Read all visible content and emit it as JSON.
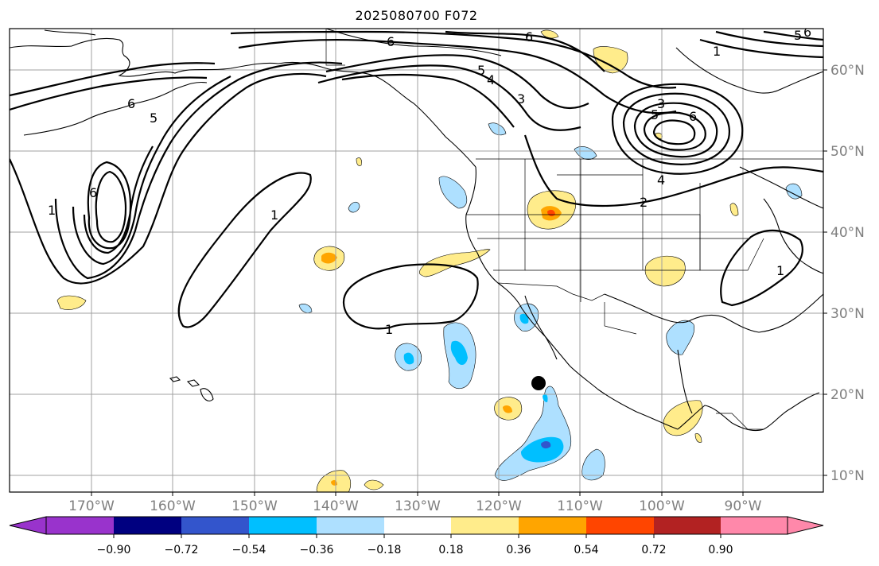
{
  "title": "2025080700 F072",
  "lon_labels": [
    "170°W",
    "160°W",
    "150°W",
    "140°W",
    "130°W",
    "120°W",
    "110°W",
    "100°W",
    "90°W"
  ],
  "lat_labels": [
    "60°N",
    "50°N",
    "40°N",
    "30°N",
    "20°N",
    "10°N"
  ],
  "colorbar": {
    "ticks": [
      "−0.90",
      "−0.72",
      "−0.54",
      "−0.36",
      "−0.18",
      "0.18",
      "0.36",
      "0.54",
      "0.72",
      "0.90"
    ],
    "colors": [
      "#9933cc",
      "#000080",
      "#3355cc",
      "#00bfff",
      "#aee0ff",
      "#ffffff",
      "#ffec8b",
      "#ffa500",
      "#ff4500",
      "#b22222",
      "#ff88aa"
    ]
  },
  "contour_labels": [
    "6",
    "6",
    "5",
    "4",
    "3",
    "6",
    "5",
    "6",
    "1",
    "1",
    "1",
    "2",
    "3",
    "4",
    "5",
    "6",
    "1",
    "1",
    "5",
    "6"
  ],
  "colors": {
    "land_outline": "#000000",
    "grid": "#a0a0a0",
    "contour": "#000000",
    "marker": "#000000"
  }
}
